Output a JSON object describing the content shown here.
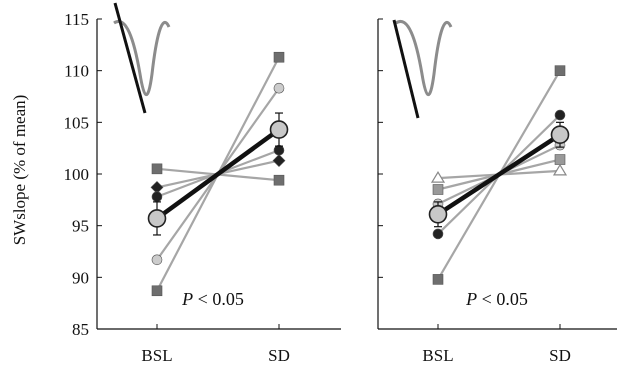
{
  "chart_data": [
    {
      "type": "line",
      "panel": "left",
      "categories": [
        "BSL",
        "SD"
      ],
      "ylabel": "SWslope (% of mean)",
      "ylim": [
        85,
        115
      ],
      "yticks": [
        85,
        90,
        95,
        100,
        105,
        110,
        115
      ],
      "annotation": {
        "italic": "P",
        "rest": " < 0.05"
      },
      "legend": "none",
      "grid": false,
      "inset_waveform": true,
      "series": [
        {
          "marker": "square",
          "color": "#6e6e6e",
          "values": [
            100.5,
            99.4
          ]
        },
        {
          "marker": "diamond",
          "color": "#222222",
          "values": [
            98.7,
            101.3
          ]
        },
        {
          "marker": "circle",
          "color": "#222222",
          "values": [
            97.8,
            102.3
          ]
        },
        {
          "marker": "circle",
          "color": "#cccccc",
          "values": [
            91.7,
            108.3
          ]
        },
        {
          "marker": "square",
          "color": "#6e6e6e",
          "values": [
            88.7,
            111.3
          ]
        }
      ],
      "mean": {
        "values": [
          95.7,
          104.3
        ],
        "errors": [
          1.6,
          1.6
        ]
      }
    },
    {
      "type": "line",
      "panel": "right",
      "categories": [
        "BSL",
        "SD"
      ],
      "ylim": [
        85,
        115
      ],
      "annotation": {
        "italic": "P",
        "rest": " < 0.05"
      },
      "legend": "none",
      "grid": false,
      "inset_waveform": true,
      "series": [
        {
          "marker": "square",
          "color": "#6e6e6e",
          "values": [
            89.8,
            110.0
          ]
        },
        {
          "marker": "circle",
          "color": "#222222",
          "values": [
            94.2,
            105.7
          ]
        },
        {
          "marker": "circle",
          "color": "#cccccc",
          "values": [
            97.1,
            102.8
          ]
        },
        {
          "marker": "square",
          "color": "#999999",
          "values": [
            98.5,
            101.4
          ]
        },
        {
          "marker": "triangle",
          "color": "#ffffff",
          "values": [
            99.6,
            100.3
          ]
        }
      ],
      "mean": {
        "values": [
          96.1,
          103.8
        ],
        "errors": [
          1.2,
          1.2
        ]
      }
    }
  ]
}
